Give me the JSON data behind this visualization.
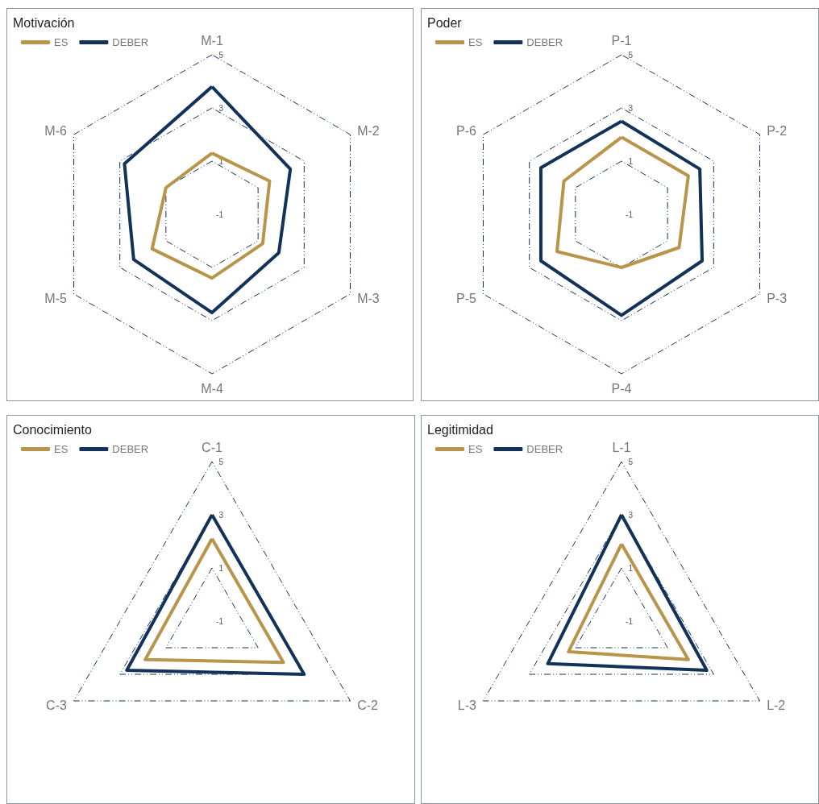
{
  "chart_data": [
    {
      "type": "radar",
      "title": "Motivación",
      "categories": [
        "M-1",
        "M-2",
        "M-3",
        "M-4",
        "M-5",
        "M-6"
      ],
      "series": [
        {
          "name": "ES",
          "color": "#b8954a",
          "values": [
            1.3,
            1.5,
            1.2,
            1.4,
            1.6,
            1.0
          ]
        },
        {
          "name": "DEBER",
          "color": "#12325a",
          "values": [
            3.8,
            2.4,
            1.9,
            2.7,
            2.4,
            2.8
          ]
        }
      ],
      "ylim": [
        -1,
        5
      ],
      "yticks": [
        -1,
        1,
        3,
        5
      ],
      "grid": true,
      "legend": "top left",
      "marker": "none",
      "line_style": "solid"
    },
    {
      "type": "radar",
      "title": "Poder",
      "categories": [
        "P-1",
        "P-2",
        "P-3",
        "P-4",
        "P-5",
        "P-6"
      ],
      "series": [
        {
          "name": "ES",
          "color": "#b8954a",
          "values": [
            1.9,
            1.9,
            1.5,
            1.0,
            1.8,
            1.5
          ]
        },
        {
          "name": "DEBER",
          "color": "#12325a",
          "values": [
            2.5,
            2.4,
            2.5,
            2.8,
            2.5,
            2.5
          ]
        }
      ],
      "ylim": [
        -1,
        5
      ],
      "yticks": [
        -1,
        1,
        3,
        5
      ],
      "grid": true,
      "legend": "top left",
      "marker": "none",
      "line_style": "solid"
    },
    {
      "type": "radar",
      "title": "Conocimiento",
      "categories": [
        "C-1",
        "C-2",
        "C-3"
      ],
      "series": [
        {
          "name": "ES",
          "color": "#b8954a",
          "values": [
            2.1,
            2.1,
            1.9
          ]
        },
        {
          "name": "DEBER",
          "color": "#12325a",
          "values": [
            3.0,
            3.0,
            2.7
          ]
        }
      ],
      "ylim": [
        -1,
        5
      ],
      "yticks": [
        -1,
        1,
        3,
        5
      ],
      "grid": true,
      "legend": "top left",
      "marker": "none",
      "line_style": "solid"
    },
    {
      "type": "radar",
      "title": "Legitimidad",
      "categories": [
        "L-1",
        "L-2",
        "L-3"
      ],
      "series": [
        {
          "name": "ES",
          "color": "#b8954a",
          "values": [
            1.9,
            1.9,
            1.3
          ]
        },
        {
          "name": "DEBER",
          "color": "#12325a",
          "values": [
            3.0,
            2.7,
            2.2
          ]
        }
      ],
      "ylim": [
        -1,
        5
      ],
      "yticks": [
        -1,
        1,
        3,
        5
      ],
      "grid": true,
      "legend": "top left",
      "marker": "none",
      "line_style": "solid"
    }
  ]
}
